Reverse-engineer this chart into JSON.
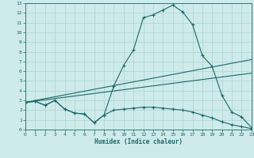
{
  "xlabel": "Humidex (Indice chaleur)",
  "bg_color": "#ceeaea",
  "grid_color": "#aed4d4",
  "line_color": "#1a6a6a",
  "xlim": [
    0,
    23
  ],
  "ylim": [
    0,
    13
  ],
  "xticks": [
    0,
    1,
    2,
    3,
    4,
    5,
    6,
    7,
    8,
    9,
    10,
    11,
    12,
    13,
    14,
    15,
    16,
    17,
    18,
    19,
    20,
    21,
    22,
    23
  ],
  "yticks": [
    0,
    1,
    2,
    3,
    4,
    5,
    6,
    7,
    8,
    9,
    10,
    11,
    12,
    13
  ],
  "curve_bell_x": [
    0,
    1,
    2,
    3,
    4,
    5,
    6,
    7,
    8,
    9,
    10,
    11,
    12,
    13,
    14,
    15,
    16,
    17,
    18,
    19,
    20,
    21,
    22,
    23
  ],
  "curve_bell_y": [
    2.8,
    2.9,
    2.5,
    3.0,
    2.1,
    1.7,
    1.6,
    0.7,
    1.5,
    4.5,
    6.6,
    8.2,
    11.5,
    11.8,
    12.3,
    12.8,
    12.1,
    10.8,
    7.6,
    6.5,
    3.5,
    1.8,
    1.3,
    0.2
  ],
  "curve_dec_x": [
    0,
    1,
    2,
    3,
    4,
    5,
    6,
    7,
    8,
    9,
    10,
    11,
    12,
    13,
    14,
    15,
    16,
    17,
    18,
    19,
    20,
    21,
    22,
    23
  ],
  "curve_dec_y": [
    2.8,
    2.9,
    2.5,
    3.0,
    2.1,
    1.7,
    1.6,
    0.7,
    1.5,
    2.0,
    2.1,
    2.2,
    2.3,
    2.3,
    2.2,
    2.1,
    2.0,
    1.8,
    1.5,
    1.2,
    0.8,
    0.5,
    0.3,
    0.1
  ],
  "line1_x": [
    0,
    23
  ],
  "line1_y": [
    2.8,
    7.2
  ],
  "line2_x": [
    0,
    23
  ],
  "line2_y": [
    2.8,
    5.8
  ]
}
